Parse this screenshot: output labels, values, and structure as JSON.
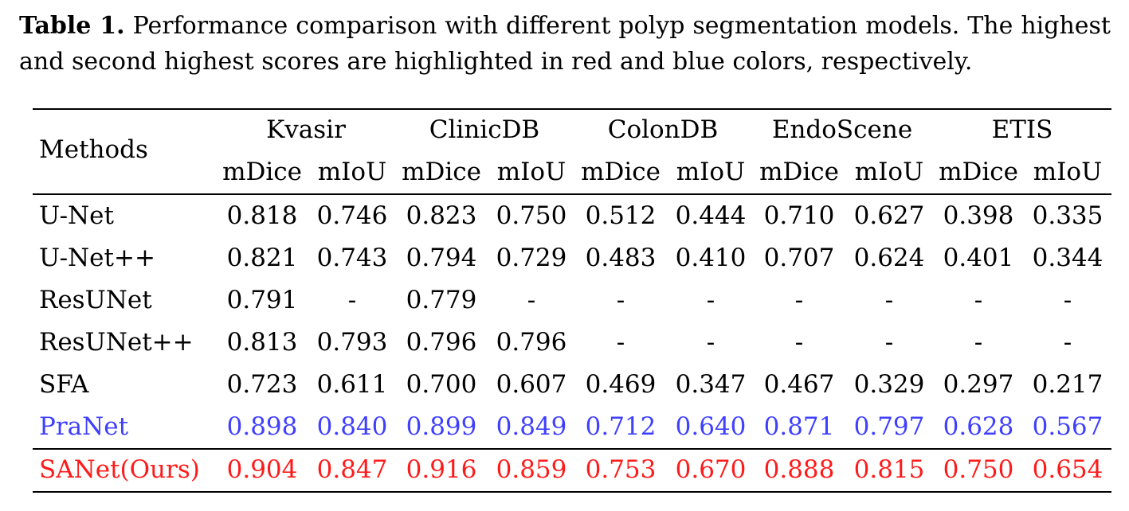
{
  "caption": {
    "label": "Table 1.",
    "text": "Performance comparison with different polyp segmentation models. The highest and second highest scores are highlighted in red and blue colors, respectively."
  },
  "table": {
    "methods_header": "Methods",
    "datasets": [
      "Kvasir",
      "ClinicDB",
      "ColonDB",
      "EndoScene",
      "ETIS"
    ],
    "metrics": [
      "mDice",
      "mIoU",
      "mDice",
      "mIoU",
      "mDice",
      "mIoU",
      "mDice",
      "mIoU",
      "mDice",
      "mIoU"
    ],
    "rows": [
      {
        "method": "U-Net",
        "values": [
          "0.818",
          "0.746",
          "0.823",
          "0.750",
          "0.512",
          "0.444",
          "0.710",
          "0.627",
          "0.398",
          "0.335"
        ],
        "highlight": "none"
      },
      {
        "method": "U-Net++",
        "values": [
          "0.821",
          "0.743",
          "0.794",
          "0.729",
          "0.483",
          "0.410",
          "0.707",
          "0.624",
          "0.401",
          "0.344"
        ],
        "highlight": "none"
      },
      {
        "method": "ResUNet",
        "values": [
          "0.791",
          "-",
          "0.779",
          "-",
          "-",
          "-",
          "-",
          "-",
          "-",
          "-"
        ],
        "highlight": "none"
      },
      {
        "method": "ResUNet++",
        "values": [
          "0.813",
          "0.793",
          "0.796",
          "0.796",
          "-",
          "-",
          "-",
          "-",
          "-",
          "-"
        ],
        "highlight": "none"
      },
      {
        "method": "SFA",
        "values": [
          "0.723",
          "0.611",
          "0.700",
          "0.607",
          "0.469",
          "0.347",
          "0.467",
          "0.329",
          "0.297",
          "0.217"
        ],
        "highlight": "none"
      },
      {
        "method": "PraNet",
        "values": [
          "0.898",
          "0.840",
          "0.899",
          "0.849",
          "0.712",
          "0.640",
          "0.871",
          "0.797",
          "0.628",
          "0.567"
        ],
        "highlight": "second"
      },
      {
        "method": "SANet(Ours)",
        "values": [
          "0.904",
          "0.847",
          "0.916",
          "0.859",
          "0.753",
          "0.670",
          "0.888",
          "0.815",
          "0.750",
          "0.654"
        ],
        "highlight": "best"
      }
    ]
  },
  "colors": {
    "best": "#ff1a1a",
    "second": "#3f3fff",
    "text": "#000000"
  }
}
